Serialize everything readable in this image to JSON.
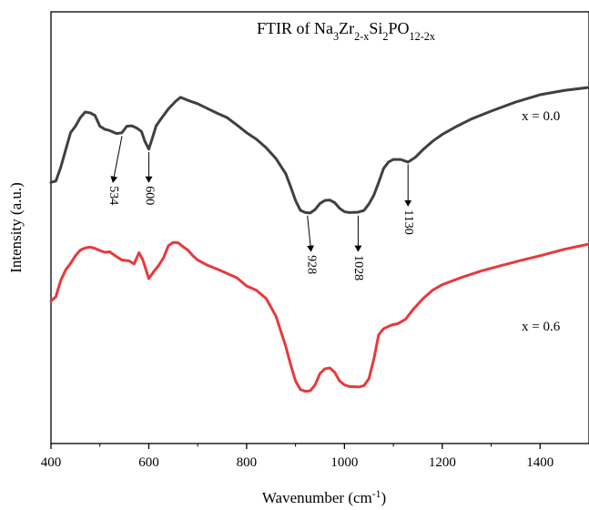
{
  "chart_data": {
    "type": "line",
    "title_parts": [
      {
        "t": "FTIR of Na",
        "s": "n"
      },
      {
        "t": "3",
        "s": "sub"
      },
      {
        "t": "Zr",
        "s": "n"
      },
      {
        "t": "2-x",
        "s": "sub"
      },
      {
        "t": "Si",
        "s": "n"
      },
      {
        "t": "2",
        "s": "sub"
      },
      {
        "t": "PO",
        "s": "n"
      },
      {
        "t": "12-2x",
        "s": "sub"
      }
    ],
    "xlabel_parts": [
      {
        "t": "Wavenumber (cm",
        "s": "n"
      },
      {
        "t": "-1",
        "s": "sup"
      },
      {
        "t": ")",
        "s": "n"
      }
    ],
    "ylabel": "Intensity (a.u.)",
    "xlim": [
      400,
      1500
    ],
    "ylim": [
      0,
      100
    ],
    "xticks": [
      400,
      600,
      800,
      1000,
      1200,
      1400
    ],
    "grid": false,
    "series": [
      {
        "name": "x = 0.0",
        "color": "#404040",
        "points": [
          [
            400,
            60.5
          ],
          [
            410,
            60.8
          ],
          [
            420,
            64
          ],
          [
            430,
            68
          ],
          [
            440,
            72
          ],
          [
            450,
            73.5
          ],
          [
            460,
            75.5
          ],
          [
            470,
            76.8
          ],
          [
            480,
            76.6
          ],
          [
            490,
            76
          ],
          [
            500,
            73.5
          ],
          [
            510,
            72.8
          ],
          [
            520,
            72.5
          ],
          [
            534,
            71.8
          ],
          [
            545,
            72
          ],
          [
            555,
            73.5
          ],
          [
            565,
            73.6
          ],
          [
            575,
            73.1
          ],
          [
            585,
            72.3
          ],
          [
            592,
            70
          ],
          [
            600,
            68.2
          ],
          [
            608,
            71
          ],
          [
            615,
            73.6
          ],
          [
            625,
            75.2
          ],
          [
            640,
            77.5
          ],
          [
            655,
            79.3
          ],
          [
            665,
            80.2
          ],
          [
            680,
            79.5
          ],
          [
            700,
            78.7
          ],
          [
            720,
            77.6
          ],
          [
            740,
            76.5
          ],
          [
            760,
            75.5
          ],
          [
            780,
            73.8
          ],
          [
            800,
            72
          ],
          [
            820,
            70.5
          ],
          [
            840,
            68.5
          ],
          [
            860,
            66
          ],
          [
            880,
            62.5
          ],
          [
            890,
            59.5
          ],
          [
            900,
            56.3
          ],
          [
            910,
            54
          ],
          [
            920,
            53.5
          ],
          [
            930,
            53.4
          ],
          [
            940,
            54.2
          ],
          [
            950,
            55.6
          ],
          [
            960,
            56.3
          ],
          [
            970,
            56.4
          ],
          [
            980,
            55.8
          ],
          [
            990,
            54.5
          ],
          [
            1000,
            53.7
          ],
          [
            1010,
            53.5
          ],
          [
            1028,
            53.6
          ],
          [
            1040,
            54
          ],
          [
            1050,
            55.5
          ],
          [
            1060,
            57.5
          ],
          [
            1070,
            60.5
          ],
          [
            1080,
            63.7
          ],
          [
            1090,
            65.2
          ],
          [
            1100,
            65.8
          ],
          [
            1115,
            65.8
          ],
          [
            1130,
            65.2
          ],
          [
            1145,
            66.3
          ],
          [
            1160,
            68
          ],
          [
            1180,
            70
          ],
          [
            1200,
            71.6
          ],
          [
            1230,
            73.5
          ],
          [
            1260,
            75.2
          ],
          [
            1300,
            77
          ],
          [
            1350,
            79.1
          ],
          [
            1400,
            80.8
          ],
          [
            1450,
            81.8
          ],
          [
            1500,
            82.5
          ]
        ]
      },
      {
        "name": "x = 0.6",
        "color": "#e8393c",
        "points": [
          [
            400,
            33
          ],
          [
            410,
            34
          ],
          [
            420,
            37.8
          ],
          [
            430,
            40.2
          ],
          [
            440,
            41.7
          ],
          [
            450,
            43.5
          ],
          [
            460,
            44.8
          ],
          [
            470,
            45.3
          ],
          [
            480,
            45.5
          ],
          [
            490,
            45.2
          ],
          [
            500,
            44.7
          ],
          [
            510,
            44.3
          ],
          [
            520,
            44.4
          ],
          [
            534,
            43.3
          ],
          [
            545,
            42.5
          ],
          [
            560,
            42.3
          ],
          [
            570,
            41.6
          ],
          [
            580,
            44.2
          ],
          [
            588,
            42.5
          ],
          [
            595,
            40
          ],
          [
            600,
            38.2
          ],
          [
            610,
            39.8
          ],
          [
            620,
            41.2
          ],
          [
            630,
            43
          ],
          [
            640,
            45.8
          ],
          [
            650,
            46.6
          ],
          [
            660,
            46.5
          ],
          [
            670,
            45.6
          ],
          [
            680,
            44.8
          ],
          [
            690,
            43.5
          ],
          [
            700,
            42.5
          ],
          [
            720,
            41.3
          ],
          [
            740,
            40.4
          ],
          [
            760,
            39.4
          ],
          [
            780,
            38.4
          ],
          [
            800,
            36.5
          ],
          [
            820,
            35.5
          ],
          [
            840,
            33.6
          ],
          [
            860,
            29.5
          ],
          [
            880,
            22.5
          ],
          [
            890,
            18.3
          ],
          [
            900,
            14.5
          ],
          [
            910,
            12.5
          ],
          [
            920,
            12.1
          ],
          [
            930,
            12.2
          ],
          [
            940,
            13.6
          ],
          [
            950,
            16.2
          ],
          [
            960,
            17.3
          ],
          [
            970,
            17.5
          ],
          [
            980,
            16.5
          ],
          [
            990,
            14.5
          ],
          [
            1000,
            13.6
          ],
          [
            1010,
            13.2
          ],
          [
            1030,
            13.1
          ],
          [
            1040,
            13.4
          ],
          [
            1050,
            15
          ],
          [
            1060,
            19.5
          ],
          [
            1070,
            25.2
          ],
          [
            1080,
            26.6
          ],
          [
            1095,
            27.4
          ],
          [
            1110,
            27.8
          ],
          [
            1125,
            28.8
          ],
          [
            1140,
            31
          ],
          [
            1160,
            33.5
          ],
          [
            1180,
            35.5
          ],
          [
            1200,
            36.8
          ],
          [
            1240,
            38.5
          ],
          [
            1280,
            40
          ],
          [
            1320,
            41.2
          ],
          [
            1360,
            42.4
          ],
          [
            1400,
            43.5
          ],
          [
            1450,
            45
          ],
          [
            1500,
            46.2
          ]
        ]
      }
    ],
    "annotations": [
      {
        "label": "534",
        "x": 534,
        "y_from": 71.2,
        "y_to": 60.5,
        "series": 0
      },
      {
        "label": "600",
        "x": 600,
        "y_from": 67.5,
        "y_to": 60.5,
        "series": 0
      },
      {
        "label": "1130",
        "x": 1130,
        "y_from": 64.7,
        "y_to": 55,
        "series": 0
      },
      {
        "label": "928",
        "x": 928,
        "y_from": 52.8,
        "y_to": 44.5,
        "series": 0
      },
      {
        "label": "1028",
        "x": 1028,
        "y_from": 52.8,
        "y_to": 44.5,
        "series": 0
      }
    ],
    "legend": [
      {
        "label": "x = 0.0",
        "series": 0
      },
      {
        "label": "x = 0.6",
        "series": 1
      }
    ]
  }
}
